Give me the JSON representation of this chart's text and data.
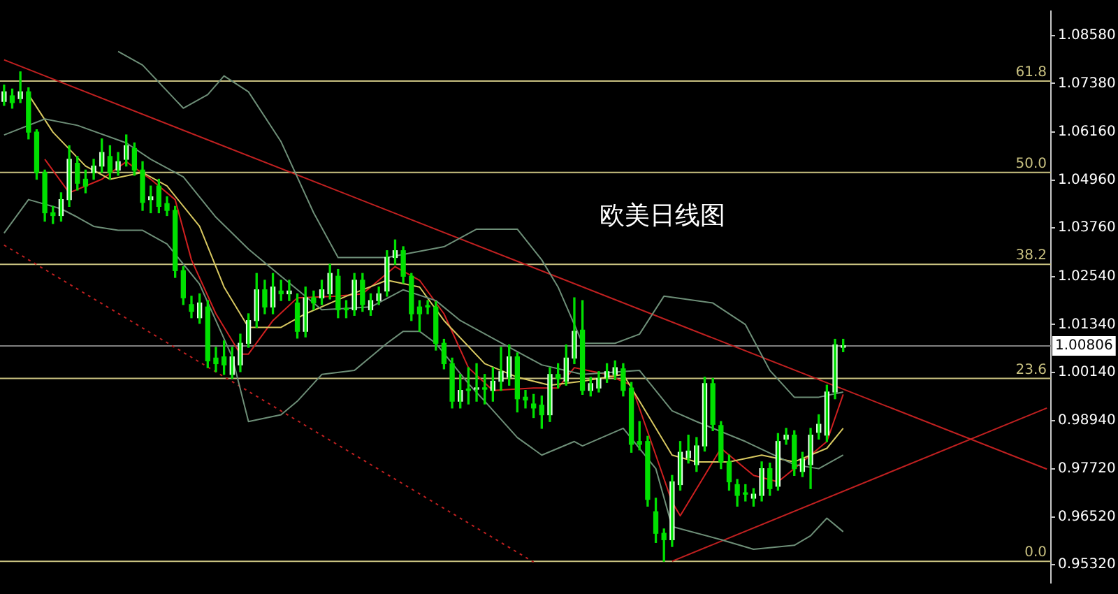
{
  "chart_data": {
    "type": "candlestick",
    "title": "欧美日线图",
    "ylim": [
      0.9487,
      1.0919
    ],
    "tick_labels": "y",
    "categories": [
      null,
      null,
      null,
      null,
      null,
      null,
      null,
      null,
      null,
      null,
      null,
      null,
      null,
      null,
      null,
      null,
      null,
      null,
      null,
      null,
      null,
      null,
      null,
      null,
      null,
      null,
      null,
      null,
      null,
      null,
      null,
      null,
      null,
      null,
      null,
      null,
      null,
      null,
      null,
      null,
      null,
      null,
      null,
      null,
      null,
      null,
      null,
      null,
      null,
      null,
      null,
      null,
      null,
      null,
      null,
      null,
      null,
      null,
      null,
      null,
      null,
      null,
      null,
      null,
      null,
      null,
      null,
      null,
      null,
      null,
      null,
      null,
      null,
      null,
      null,
      null,
      null,
      null,
      null,
      null,
      null,
      null,
      null,
      null,
      null,
      null,
      null,
      null,
      null,
      null,
      null,
      null,
      null,
      null,
      null,
      null,
      null,
      null,
      null,
      null,
      null,
      null,
      null,
      null,
      null,
      null,
      null,
      null,
      null,
      null,
      null,
      null,
      null,
      null,
      null,
      null,
      null,
      null,
      null,
      null,
      null,
      null,
      null,
      null,
      null,
      null,
      null,
      null,
      null
    ],
    "yticks": [
      {
        "value": 1.0858,
        "label": "1.08580"
      },
      {
        "value": 1.0738,
        "label": "1.07380"
      },
      {
        "value": 1.0616,
        "label": "1.06160"
      },
      {
        "value": 1.0496,
        "label": "1.04960"
      },
      {
        "value": 1.0376,
        "label": "1.03760"
      },
      {
        "value": 1.0254,
        "label": "1.02540"
      },
      {
        "value": 1.0134,
        "label": "1.01340"
      },
      {
        "value": 1.0014,
        "label": "1.00140"
      },
      {
        "value": 0.9894,
        "label": "0.98940"
      },
      {
        "value": 0.9772,
        "label": "0.97720"
      },
      {
        "value": 0.9652,
        "label": "0.96520"
      },
      {
        "value": 0.9532,
        "label": "0.95320"
      }
    ],
    "ref_lines": [
      {
        "axis": "y",
        "value": 1.00806,
        "label": "1.00806",
        "color": "#808080"
      },
      {
        "axis": "y",
        "value": 0.9541,
        "color": "#c8c080"
      },
      {
        "axis": "y",
        "value": 0.9999,
        "color": "#c8c080"
      },
      {
        "axis": "y",
        "value": 1.0285,
        "color": "#c8c080"
      },
      {
        "axis": "y",
        "value": 1.0515,
        "color": "#c8c080"
      },
      {
        "axis": "y",
        "value": 1.0744,
        "color": "#c8c080"
      }
    ],
    "annotations": [
      {
        "text": "0.0",
        "y": 0.9541
      },
      {
        "text": "23.6",
        "y": 0.9999
      },
      {
        "text": "38.2",
        "y": 1.0285
      },
      {
        "text": "50.0",
        "y": 1.0515
      },
      {
        "text": "61.8",
        "y": 1.0744
      }
    ],
    "series": [
      {
        "type": "line",
        "color": "#6e8f78",
        "values": [
          null,
          null,
          null,
          null,
          null,
          null,
          null,
          null,
          null,
          null,
          null,
          null,
          null,
          null,
          1.0818,
          null,
          null,
          1.0784,
          null,
          null,
          null,
          null,
          1.0676,
          null,
          null,
          1.071,
          null,
          1.0757,
          null,
          null,
          1.0717,
          null,
          null,
          null,
          1.0592,
          null,
          null,
          null,
          1.0414,
          null,
          null,
          1.0302,
          null,
          null,
          null,
          null,
          null,
          1.0302,
          null,
          null,
          null,
          null,
          null,
          null,
          1.0329,
          null,
          null,
          null,
          1.0373,
          null,
          null,
          null,
          null,
          1.0373,
          null,
          null,
          1.0296,
          null,
          1.0228,
          null,
          null,
          1.0087,
          null,
          null,
          null,
          1.0087,
          null,
          null,
          1.011,
          null,
          null,
          1.0205,
          null,
          null,
          null,
          null,
          null,
          1.0188,
          null,
          null,
          null,
          1.0134,
          null,
          null,
          1.0019,
          null,
          null,
          0.9952,
          null,
          null,
          0.9952,
          null,
          null,
          0.9965,
          null,
          null,
          null,
          null,
          null,
          null,
          null,
          null,
          null,
          null,
          null,
          null,
          null,
          null,
          null,
          null,
          null,
          null,
          null,
          null,
          null,
          null,
          null,
          null,
          null
        ]
      },
      {
        "type": "line",
        "color": "#6e8f78",
        "values": [
          1.0609,
          null,
          null,
          null,
          null,
          1.0649,
          null,
          null,
          null,
          1.0633,
          null,
          null,
          null,
          null,
          null,
          1.0589,
          null,
          null,
          1.0548,
          null,
          null,
          null,
          1.0504,
          null,
          null,
          null,
          1.0403,
          null,
          null,
          null,
          1.0323,
          null,
          null,
          null,
          1.0255,
          null,
          null,
          null,
          null,
          1.0171,
          null,
          null,
          null,
          null,
          null,
          1.0178,
          null,
          null,
          null,
          1.0221,
          null,
          null,
          null,
          1.0194,
          null,
          null,
          1.0144,
          null,
          null,
          null,
          null,
          null,
          1.0077,
          null,
          null,
          null,
          1.0033,
          null,
          null,
          null,
          null,
          1.0009,
          null,
          null,
          null,
          null,
          null,
          null,
          1.0019,
          null,
          null,
          null,
          0.9918,
          null,
          null,
          0.9891,
          null,
          null,
          null,
          null,
          null,
          0.9841,
          null,
          null,
          null,
          null,
          null,
          0.9783,
          null,
          null,
          0.9773,
          null,
          null,
          0.9807,
          null,
          null,
          null,
          null,
          null,
          null,
          null,
          null,
          null,
          null,
          null,
          null,
          null,
          null,
          null,
          null,
          null,
          null,
          null,
          null,
          null,
          null,
          null,
          null,
          null
        ]
      },
      {
        "type": "line",
        "color": "#6e8f78",
        "values": [
          1.0363,
          null,
          null,
          1.0447,
          null,
          null,
          null,
          1.0424,
          null,
          1.0403,
          null,
          1.038,
          null,
          null,
          1.037,
          null,
          null,
          1.037,
          null,
          null,
          1.0336,
          null,
          null,
          null,
          1.0235,
          null,
          1.0144,
          null,
          1.0053,
          null,
          0.9891,
          null,
          null,
          null,
          0.9908,
          null,
          0.9942,
          null,
          null,
          1.0009,
          null,
          null,
          null,
          1.0019,
          null,
          null,
          null,
          1.0087,
          null,
          1.0117,
          null,
          1.0117,
          null,
          1.0087,
          null,
          null,
          null,
          0.9986,
          null,
          0.9942,
          null,
          null,
          null,
          0.9851,
          null,
          null,
          0.9807,
          null,
          null,
          null,
          0.9841,
          0.983,
          null,
          null,
          null,
          null,
          0.9874,
          null,
          null,
          null,
          0.9773,
          null,
          0.9628,
          null,
          null,
          null,
          null,
          null,
          0.9595,
          null,
          null,
          null,
          0.9571,
          null,
          null,
          null,
          null,
          0.9581,
          null,
          0.9605,
          null,
          0.9649,
          null,
          0.9615,
          null,
          null,
          null,
          null,
          null,
          null,
          null,
          null,
          null,
          null,
          null,
          null,
          null,
          null,
          null,
          null,
          null,
          null,
          null,
          null,
          null,
          null,
          null,
          null,
          null
        ]
      },
      {
        "type": "line",
        "color": "#d8c860",
        "values": [
          null,
          null,
          null,
          1.071,
          null,
          null,
          1.0616,
          null,
          null,
          null,
          1.0531,
          null,
          null,
          1.0498,
          null,
          null,
          null,
          1.0515,
          null,
          null,
          1.0481,
          null,
          null,
          null,
          1.038,
          null,
          null,
          1.0228,
          null,
          null,
          1.0127,
          null,
          null,
          null,
          1.0127,
          null,
          null,
          1.0161,
          null,
          null,
          null,
          null,
          1.0205,
          null,
          null,
          null,
          null,
          1.0245,
          null,
          null,
          null,
          1.0228,
          null,
          null,
          1.0144,
          null,
          null,
          null,
          null,
          1.0036,
          null,
          null,
          null,
          1.0002,
          null,
          null,
          null,
          0.9982,
          null,
          null,
          null,
          0.9992,
          null,
          null,
          null,
          null,
          1.0009,
          null,
          0.9942,
          null,
          null,
          null,
          0.9807,
          null,
          null,
          0.979,
          null,
          null,
          null,
          0.979,
          null,
          null,
          null,
          0.9807,
          null,
          null,
          null,
          0.979,
          null,
          null,
          null,
          0.9824,
          null,
          0.9874,
          null,
          null,
          null,
          null,
          null,
          null,
          null,
          null,
          null,
          null,
          null,
          null,
          null,
          null,
          null,
          null,
          null,
          null,
          null,
          null,
          null,
          null,
          null,
          null,
          null
        ]
      },
      {
        "type": "line",
        "color": "#d02020",
        "values": [
          null,
          null,
          null,
          null,
          null,
          1.0548,
          null,
          null,
          1.0464,
          null,
          null,
          null,
          1.0498,
          null,
          null,
          1.0542,
          null,
          null,
          1.0498,
          null,
          null,
          1.0447,
          null,
          1.0296,
          null,
          null,
          1.0161,
          null,
          null,
          1.006,
          1.006,
          null,
          null,
          1.0144,
          null,
          null,
          1.0201,
          null,
          null,
          null,
          null,
          1.0205,
          null,
          null,
          1.0211,
          null,
          null,
          null,
          1.0279,
          null,
          null,
          1.0245,
          null,
          null,
          1.0161,
          null,
          null,
          1.0026,
          null,
          null,
          0.9969,
          null,
          null,
          null,
          null,
          0.9975,
          null,
          null,
          0.9975,
          null,
          1.0026,
          null,
          null,
          null,
          1.0009,
          null,
          null,
          0.9982,
          null,
          null,
          0.9807,
          null,
          0.9689,
          0.9655,
          null,
          null,
          0.9756,
          null,
          0.9824,
          null,
          null,
          null,
          0.9756,
          null,
          null,
          0.974,
          null,
          null,
          0.979,
          null,
          null,
          0.9841,
          null,
          0.9959,
          null,
          null,
          null,
          null,
          null,
          null,
          null,
          null,
          null,
          null,
          null,
          null,
          null,
          null,
          null,
          null,
          null,
          null,
          null,
          null,
          null,
          null,
          null,
          null,
          null
        ]
      },
      {
        "type": "line",
        "color": "#c02020",
        "values": [
          1.0797,
          null,
          null,
          null,
          null,
          null,
          null,
          null,
          null,
          null,
          null,
          null,
          null,
          null,
          null,
          null,
          null,
          null,
          null,
          null,
          null,
          null,
          null,
          null,
          null,
          null,
          null,
          null,
          null,
          null,
          null,
          null,
          null,
          null,
          null,
          null,
          null,
          null,
          null,
          null,
          null,
          null,
          null,
          null,
          null,
          null,
          null,
          null,
          null,
          null,
          null,
          null,
          null,
          null,
          null,
          null,
          null,
          null,
          null,
          null,
          null,
          null,
          null,
          null,
          null,
          null,
          null,
          null,
          null,
          null,
          null,
          null,
          null,
          null,
          null,
          null,
          null,
          null,
          null,
          null,
          null,
          null,
          null,
          null,
          null,
          null,
          null,
          null,
          null,
          null,
          null,
          null,
          null,
          null,
          null,
          null,
          null,
          null,
          null,
          null,
          null,
          null,
          null,
          null,
          null,
          null,
          null,
          null,
          null,
          null,
          null,
          null,
          null,
          null,
          null,
          null,
          null,
          null,
          null,
          null,
          null,
          null,
          null,
          null,
          null,
          null,
          null,
          null,
          0.9772
        ]
      },
      {
        "type": "line",
        "color": "#c02020",
        "values": [
          null,
          null,
          null,
          null,
          null,
          null,
          null,
          null,
          null,
          null,
          null,
          null,
          null,
          null,
          null,
          null,
          null,
          null,
          null,
          null,
          null,
          null,
          null,
          null,
          null,
          null,
          null,
          null,
          null,
          null,
          null,
          null,
          null,
          null,
          null,
          null,
          null,
          null,
          null,
          null,
          null,
          null,
          null,
          null,
          null,
          null,
          null,
          null,
          null,
          null,
          null,
          null,
          null,
          null,
          null,
          null,
          null,
          null,
          null,
          null,
          null,
          null,
          null,
          null,
          null,
          null,
          null,
          null,
          null,
          null,
          null,
          null,
          null,
          null,
          null,
          null,
          null,
          null,
          null,
          null,
          null,
          null,
          0.9541,
          null,
          null,
          null,
          null,
          null,
          null,
          null,
          null,
          null,
          null,
          null,
          null,
          null,
          null,
          null,
          null,
          null,
          null,
          null,
          null,
          null,
          null,
          null,
          null,
          null,
          null,
          null,
          null,
          null,
          null,
          null,
          null,
          null,
          null,
          null,
          null,
          null,
          null,
          null,
          null,
          null,
          null,
          null,
          null,
          null,
          0.9925
        ]
      },
      {
        "type": "line",
        "color": "#c02020",
        "line_style": "dotted",
        "values": [
          1.0333,
          null,
          null,
          null,
          null,
          null,
          null,
          null,
          null,
          null,
          null,
          null,
          null,
          null,
          null,
          null,
          null,
          null,
          null,
          null,
          null,
          null,
          null,
          null,
          null,
          null,
          null,
          null,
          null,
          null,
          null,
          null,
          null,
          null,
          null,
          null,
          null,
          null,
          null,
          null,
          null,
          null,
          null,
          null,
          null,
          null,
          null,
          null,
          null,
          null,
          null,
          null,
          null,
          null,
          null,
          null,
          null,
          null,
          null,
          null,
          null,
          null,
          null,
          null,
          null,
          0.9539,
          null,
          null,
          null,
          null,
          null,
          null,
          null,
          null,
          null,
          null,
          null,
          null,
          null,
          null,
          null,
          null,
          null,
          null,
          null,
          null,
          null,
          null,
          null,
          null,
          null,
          null,
          null,
          null,
          null,
          null,
          null,
          null,
          null,
          null,
          null,
          null,
          null,
          null,
          null,
          null,
          null,
          null,
          null,
          null,
          null,
          null,
          null,
          null,
          null,
          null,
          null,
          null,
          null,
          null,
          null,
          null,
          null,
          null,
          null,
          null,
          null,
          null,
          null
        ]
      },
      {
        "color": "#00e000",
        "colors": [
          "#e8ffe8",
          "#00e000",
          "#e8ffe8",
          "#00e000",
          "#00e000",
          "#00e000",
          "#00e000",
          "#e8ffe8",
          "#e8ffe8",
          "#00e000",
          "#00e000",
          "#e8ffe8",
          "#e8ffe8",
          "#00e000",
          "#e8ffe8",
          "#e8ffe8",
          "#00e000",
          "#00e000",
          "#e8ffe8",
          "#00e000",
          "#00e000",
          "#00e000",
          "#00e000",
          "#00e000",
          "#e8ffe8",
          "#00e000",
          "#00e000",
          "#00e000",
          "#e8ffe8",
          "#e8ffe8",
          "#e8ffe8",
          "#e8ffe8",
          "#00e000",
          "#e8ffe8",
          "#00e000",
          "#e8ffe8",
          "#00e000",
          "#e8ffe8",
          "#00e000",
          "#e8ffe8",
          "#e8ffe8",
          "#00e000",
          "#00e000",
          "#e8ffe8",
          "#00e000",
          "#e8ffe8",
          "#e8ffe8",
          "#e8ffe8",
          "#e8ffe8",
          "#00e000",
          "#00e000",
          "#00e000",
          "#00e000",
          "#00e000",
          "#00e000",
          "#00e000",
          "#e8ffe8",
          "#00e000",
          "#e8ffe8",
          "#00e000",
          "#e8ffe8",
          "#e8ffe8",
          "#e8ffe8",
          "#00e000",
          "#00e000",
          "#00e000",
          "#00e000",
          "#e8ffe8",
          "#00e000",
          "#e8ffe8",
          "#e8ffe8",
          "#00e000",
          "#e8ffe8",
          "#e8ffe8",
          "#e8ffe8",
          "#e8ffe8",
          "#00e000",
          "#00e000",
          "#00e000",
          "#00e000",
          "#00e000",
          "#00e000",
          "#e8ffe8",
          "#e8ffe8",
          "#e8ffe8",
          "#e8ffe8",
          "#e8ffe8",
          "#00e000",
          "#00e000",
          "#00e000",
          "#00e000",
          "#00e000",
          "#e8ffe8",
          "#e8ffe8",
          "#00e000",
          "#e8ffe8",
          "#e8ffe8",
          "#00e000",
          "#e8ffe8",
          "#e8ffe8",
          "#e8ffe8",
          "#e8ffe8",
          "#e8ffe8",
          "#e8ffe8",
          null,
          null,
          null,
          null,
          null,
          null,
          null,
          null,
          null,
          null,
          null,
          null,
          null,
          null,
          null,
          null,
          null,
          null,
          null,
          null,
          null,
          null,
          null,
          null,
          null
        ],
        "ohlc": [
          [
            1.0693,
            1.0734,
            1.0683,
            1.0717
          ],
          [
            1.0707,
            1.0724,
            1.0676,
            1.069
          ],
          [
            1.07,
            1.0767,
            1.069,
            1.0717
          ],
          [
            1.0717,
            1.0727,
            1.0599,
            1.0616
          ],
          [
            1.0616,
            1.0622,
            1.0498,
            1.0515
          ],
          [
            1.0515,
            1.0521,
            1.0393,
            1.0414
          ],
          [
            1.0414,
            1.043,
            1.0387,
            1.0407
          ],
          [
            1.0407,
            1.0464,
            1.0393,
            1.0447
          ],
          [
            1.0447,
            1.0582,
            1.043,
            1.0548
          ],
          [
            1.0538,
            1.0555,
            1.0471,
            1.0488
          ],
          [
            1.0498,
            1.0521,
            1.0464,
            1.0481
          ],
          [
            1.0515,
            1.0548,
            1.0498,
            1.0531
          ],
          [
            1.0531,
            1.0599,
            1.0515,
            1.0565
          ],
          [
            1.0555,
            1.0582,
            1.0498,
            1.0515
          ],
          [
            1.0521,
            1.0565,
            1.0508,
            1.0542
          ],
          [
            1.0548,
            1.0609,
            1.0531,
            1.0582
          ],
          [
            1.0575,
            1.0589,
            1.0508,
            1.0521
          ],
          [
            1.0521,
            1.0542,
            1.042,
            1.044
          ],
          [
            1.0447,
            1.0481,
            1.0414,
            1.0454
          ],
          [
            1.0481,
            1.0498,
            1.0414,
            1.043
          ],
          [
            1.0437,
            1.0454,
            1.0407,
            1.042
          ],
          [
            1.042,
            1.043,
            1.0252,
            1.0269
          ],
          [
            1.0269,
            1.0279,
            1.0184,
            1.0201
          ],
          [
            1.0184,
            1.0205,
            1.0151,
            1.0167
          ],
          [
            1.0151,
            1.0211,
            1.0137,
            1.0188
          ],
          [
            1.0178,
            1.0194,
            1.0026,
            1.0043
          ],
          [
            1.005,
            1.0077,
            1.0016,
            1.0036
          ],
          [
            1.0053,
            1.0093,
            1.0009,
            1.0033
          ],
          [
            1.0009,
            1.0077,
            0.9999,
            1.0053
          ],
          [
            1.0033,
            1.011,
            1.0016,
            1.0087
          ],
          [
            1.0087,
            1.0161,
            1.0077,
            1.0144
          ],
          [
            1.0144,
            1.0262,
            1.0127,
            1.0221
          ],
          [
            1.0221,
            1.0245,
            1.0161,
            1.0178
          ],
          [
            1.0178,
            1.0262,
            1.0161,
            1.0228
          ],
          [
            1.0218,
            1.0245,
            1.0194,
            1.0211
          ],
          [
            1.0211,
            1.0245,
            1.0194,
            1.0218
          ],
          [
            1.0188,
            1.0211,
            1.01,
            1.0117
          ],
          [
            1.0117,
            1.0228,
            1.0103,
            1.0201
          ],
          [
            1.0201,
            1.0218,
            1.0171,
            1.0188
          ],
          [
            1.0201,
            1.0245,
            1.0184,
            1.0221
          ],
          [
            1.0211,
            1.0285,
            1.0198,
            1.0262
          ],
          [
            1.0255,
            1.0272,
            1.0151,
            1.0171
          ],
          [
            1.0171,
            1.0194,
            1.0151,
            1.0171
          ],
          [
            1.0171,
            1.0262,
            1.0157,
            1.0245
          ],
          [
            1.0245,
            1.0262,
            1.0167,
            1.0184
          ],
          [
            1.0171,
            1.0211,
            1.0157,
            1.0194
          ],
          [
            1.0194,
            1.0228,
            1.0184,
            1.0211
          ],
          [
            1.0218,
            1.0319,
            1.0205,
            1.0302
          ],
          [
            1.0302,
            1.0346,
            1.0285,
            1.0319
          ],
          [
            1.0319,
            1.0329,
            1.0238,
            1.0255
          ],
          [
            1.0255,
            1.0262,
            1.0144,
            1.0161
          ],
          [
            1.0178,
            1.0194,
            1.0117,
            1.0161
          ],
          [
            1.0178,
            1.0194,
            1.0161,
            1.0178
          ],
          [
            1.0178,
            1.0191,
            1.007,
            1.0087
          ],
          [
            1.0087,
            1.0097,
            1.0023,
            1.0036
          ],
          [
            1.0036,
            1.005,
            0.9925,
            0.9942
          ],
          [
            0.9942,
            1.0009,
            0.9925,
            0.9969
          ],
          [
            0.9969,
            1.0026,
            0.9935,
            0.9969
          ],
          [
            0.9972,
            1.0036,
            0.9942,
            0.9975
          ],
          [
            0.9972,
            1.0009,
            0.9935,
            0.9972
          ],
          [
            0.9969,
            1.0026,
            0.9942,
            0.9992
          ],
          [
            0.9992,
            1.0077,
            0.9969,
            1.0016
          ],
          [
            1.0002,
            1.0083,
            0.9982,
            1.0053
          ],
          [
            1.0053,
            1.0063,
            0.9915,
            0.9948
          ],
          [
            0.9952,
            0.9969,
            0.9925,
            0.9945
          ],
          [
            0.9935,
            0.9959,
            0.9901,
            0.9925
          ],
          [
            0.9932,
            0.9955,
            0.9874,
            0.9908
          ],
          [
            0.9908,
            1.0026,
            0.9891,
            1.0009
          ],
          [
            1.0009,
            1.0036,
            0.9975,
            0.9999
          ],
          [
            0.9992,
            1.0083,
            0.9982,
            1.005
          ],
          [
            1.005,
            1.0201,
            1.0036,
            1.0117
          ],
          [
            1.012,
            1.0194,
            0.9959,
            0.9969
          ],
          [
            0.9969,
            1.0002,
            0.9955,
            0.9986
          ],
          [
            0.9975,
            1.0016,
            0.9965,
            0.9999
          ],
          [
            1.0002,
            1.0036,
            0.9989,
            1.0016
          ],
          [
            1.0009,
            1.0043,
            0.9996,
            1.0026
          ],
          [
            1.0023,
            1.0036,
            0.9955,
            0.9969
          ],
          [
            0.9975,
            0.9989,
            0.9814,
            0.9834
          ],
          [
            0.9841,
            0.9891,
            0.982,
            0.9834
          ],
          [
            0.9841,
            0.9854,
            0.9679,
            0.9696
          ],
          [
            0.9665,
            0.9699,
            0.9588,
            0.9611
          ],
          [
            0.9611,
            0.9622,
            0.9541,
            0.9595
          ],
          [
            0.9595,
            0.9756,
            0.9578,
            0.974
          ],
          [
            0.9733,
            0.9841,
            0.9719,
            0.9814
          ],
          [
            0.98,
            0.9857,
            0.9787,
            0.9817
          ],
          [
            0.9783,
            0.9851,
            0.9766,
            0.983
          ],
          [
            0.983,
            1.0002,
            0.9817,
            0.9986
          ],
          [
            0.9986,
            0.9999,
            0.9868,
            0.9884
          ],
          [
            0.9881,
            0.9891,
            0.9773,
            0.979
          ],
          [
            0.979,
            0.9807,
            0.9719,
            0.974
          ],
          [
            0.9733,
            0.9746,
            0.9679,
            0.9706
          ],
          [
            0.9709,
            0.9733,
            0.9692,
            0.9709
          ],
          [
            0.9699,
            0.9723,
            0.9679,
            0.9709
          ],
          [
            0.9706,
            0.979,
            0.9692,
            0.9773
          ],
          [
            0.9773,
            0.9787,
            0.9706,
            0.9723
          ],
          [
            0.9729,
            0.9861,
            0.9719,
            0.9841
          ],
          [
            0.9847,
            0.9874,
            0.9834,
            0.9857
          ],
          [
            0.9857,
            0.9868,
            0.9756,
            0.9773
          ],
          [
            0.9766,
            0.9814,
            0.9753,
            0.9797
          ],
          [
            0.9783,
            0.9874,
            0.9723,
            0.9857
          ],
          [
            0.9864,
            0.9908,
            0.9847,
            0.9884
          ],
          [
            0.9857,
            0.9982,
            0.9841,
            0.9965
          ],
          [
            0.9965,
            1.0097,
            0.9948,
            1.0083
          ],
          [
            1.0077,
            1.0097,
            1.0066,
            1.0081
          ],
          null,
          null,
          null,
          null,
          null,
          null,
          null,
          null,
          null,
          null,
          null,
          null,
          null,
          null,
          null,
          null,
          null,
          null,
          null,
          null,
          null,
          null,
          null,
          null,
          null
        ]
      }
    ]
  }
}
